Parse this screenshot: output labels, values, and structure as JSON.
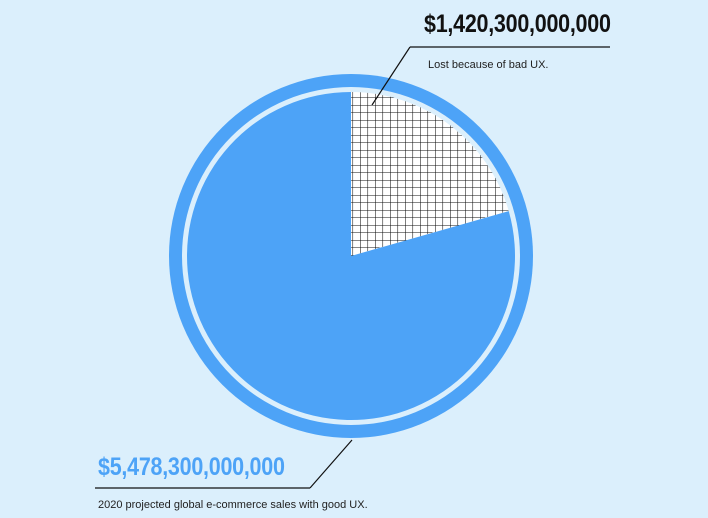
{
  "chart_data": {
    "type": "pie",
    "slices": [
      {
        "value": 1420300000000,
        "value_label": "$1,420,300,000,000",
        "caption": "Lost because of bad UX.",
        "fill": "crosshatch",
        "color": "#111111"
      },
      {
        "value": 5478300000000,
        "value_label": "$5,478,300,000,000",
        "caption": "2020 projected global e-commerce sales with good UX.",
        "fill": "solid",
        "color": "#4da3f7"
      }
    ],
    "start_angle": "12 o'clock",
    "direction": "clockwise",
    "colors": {
      "background": "#dbeffc",
      "accent": "#4da3f7",
      "hatch": "#111111"
    }
  }
}
